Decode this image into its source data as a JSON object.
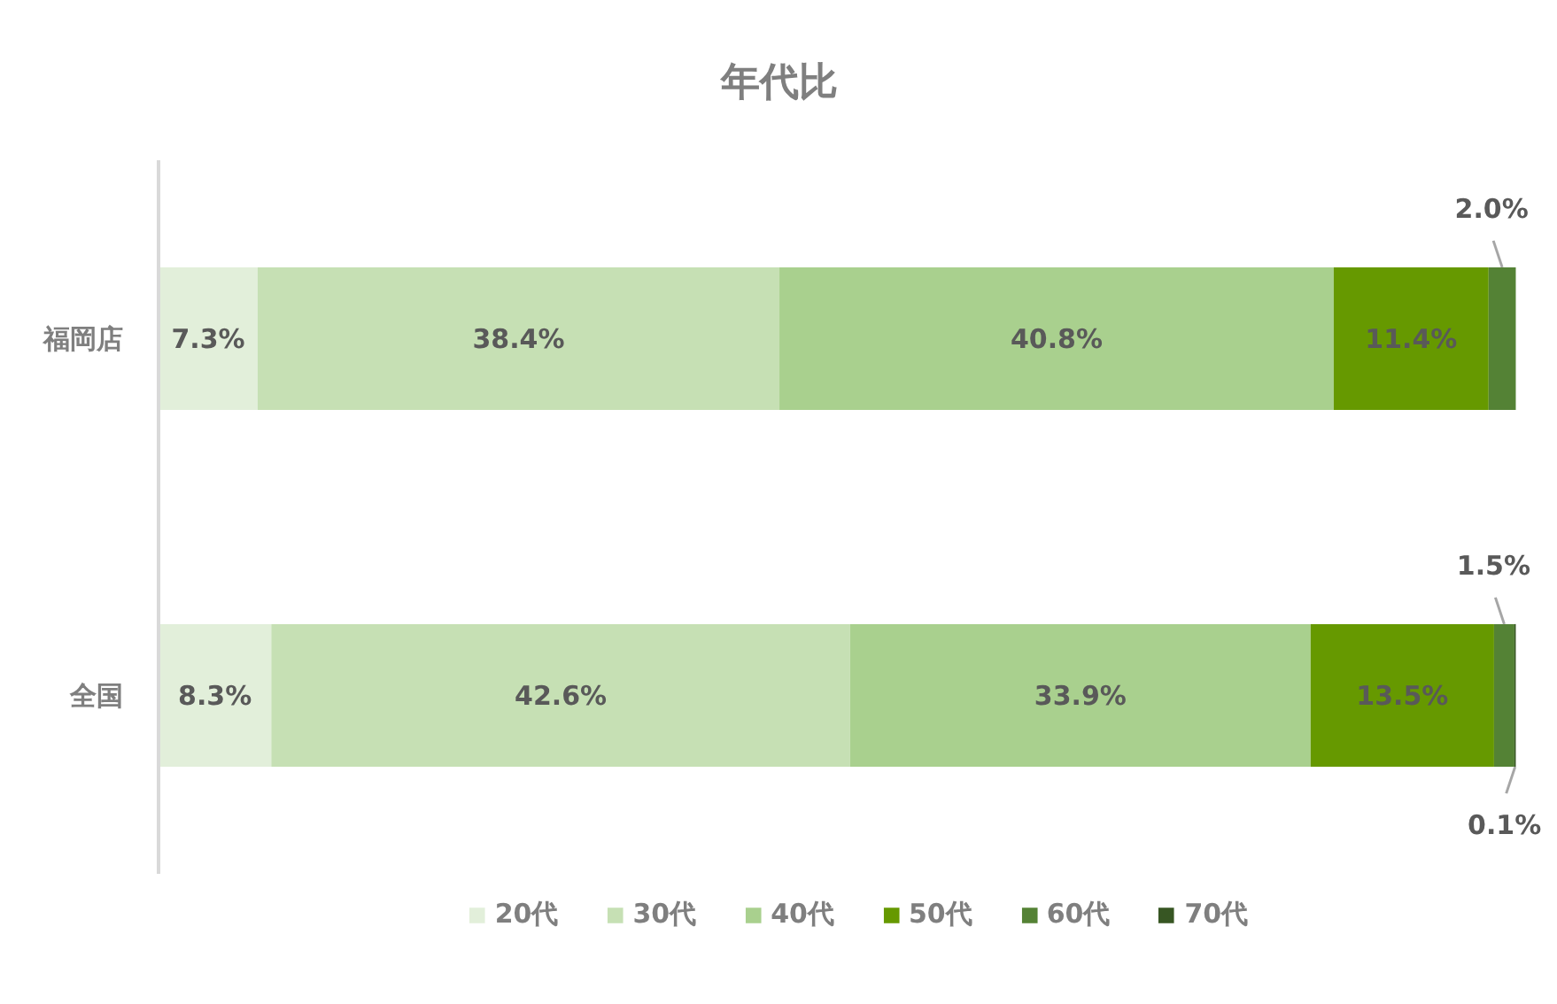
{
  "chart_data": {
    "type": "bar",
    "orientation": "horizontal",
    "stacked": true,
    "title": "年代比",
    "categories": [
      "福岡店",
      "全国"
    ],
    "series": [
      {
        "name": "20代",
        "color": "#e2efda",
        "values": [
          7.3,
          8.3
        ],
        "value_labels": [
          "7.3%",
          "8.3%"
        ]
      },
      {
        "name": "30代",
        "color": "#c6e0b4",
        "values": [
          38.4,
          42.6
        ],
        "value_labels": [
          "38.4%",
          "42.6%"
        ]
      },
      {
        "name": "40代",
        "color": "#a9d08e",
        "values": [
          40.8,
          33.9
        ],
        "value_labels": [
          "40.8%",
          "33.9%"
        ]
      },
      {
        "name": "50代",
        "color": "#669900",
        "values": [
          11.4,
          13.5
        ],
        "value_labels": [
          "11.4%",
          "13.5%"
        ]
      },
      {
        "name": "60代",
        "color": "#548235",
        "values": [
          2.0,
          1.5
        ],
        "value_labels": [
          "2.0%",
          "1.5%"
        ]
      },
      {
        "name": "70代",
        "color": "#375623",
        "values": [
          null,
          0.1
        ],
        "value_labels": [
          null,
          "0.1%"
        ]
      }
    ],
    "xlim": [
      0,
      100
    ],
    "tick_labels": "y",
    "legend": "bottom"
  }
}
